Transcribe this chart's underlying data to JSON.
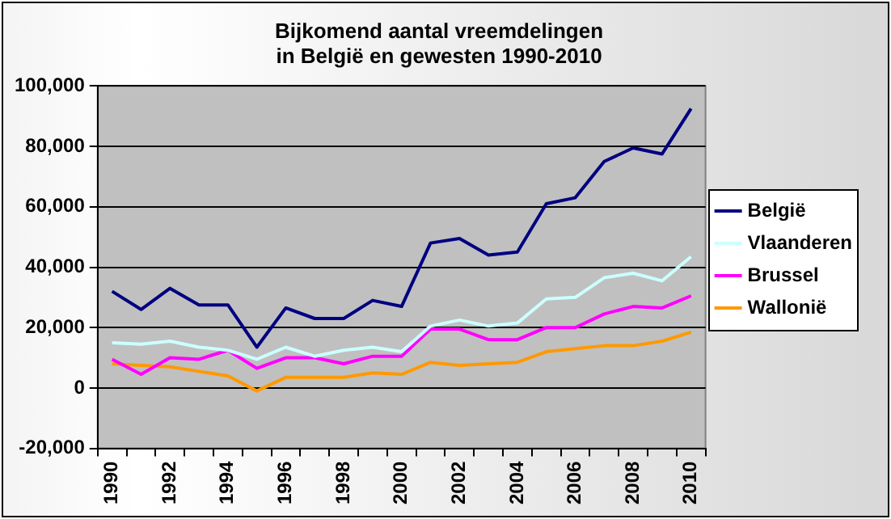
{
  "chart_data": {
    "type": "line",
    "title": "Bijkomend aantal vreemdelingen\nin België en gewesten 1990-2010",
    "categories": [
      "1990",
      null,
      "1992",
      null,
      "1994",
      null,
      "1996",
      null,
      "1998",
      null,
      "2000",
      null,
      "2002",
      null,
      "2004",
      null,
      "2006",
      null,
      "2008",
      null,
      "2010"
    ],
    "series": [
      {
        "name": "België",
        "color": "#000080",
        "values": [
          32000,
          26000,
          33000,
          27500,
          27500,
          13500,
          26500,
          23000,
          23000,
          29000,
          27000,
          48000,
          49500,
          44000,
          45000,
          61000,
          63000,
          75000,
          79500,
          77500,
          92500
        ]
      },
      {
        "name": "Vlaanderen",
        "color": "#ccffff",
        "values": [
          15000,
          14500,
          15500,
          13500,
          12500,
          9500,
          13500,
          10500,
          12500,
          13500,
          12000,
          20500,
          22500,
          20500,
          21500,
          29500,
          30000,
          36500,
          38000,
          35500,
          43500
        ]
      },
      {
        "name": "Brussel",
        "color": "#ff00ff",
        "values": [
          9500,
          4500,
          10000,
          9500,
          12500,
          6500,
          10000,
          10000,
          8000,
          10500,
          10500,
          19500,
          19500,
          16000,
          16000,
          20000,
          20000,
          24500,
          27000,
          26500,
          30500
        ]
      },
      {
        "name": "Wallonië",
        "color": "#ff9900",
        "values": [
          8000,
          7500,
          7000,
          5500,
          4000,
          -1000,
          3500,
          3500,
          3500,
          5000,
          4500,
          8500,
          7500,
          8000,
          8500,
          12000,
          13000,
          14000,
          14000,
          15500,
          18500
        ]
      }
    ],
    "ylim": [
      -20000,
      100000
    ],
    "yticks": [
      {
        "value": -20000,
        "label": "-20,000"
      },
      0,
      {
        "value": 20000,
        "label": "20,000"
      },
      {
        "value": 40000,
        "label": "40,000"
      },
      {
        "value": 60000,
        "label": "60,000"
      },
      {
        "value": 80000,
        "label": "80,000"
      },
      {
        "value": 100000,
        "label": "100,000"
      }
    ],
    "grid": "y",
    "legend": "right",
    "marker": "none",
    "line_style": "solid"
  }
}
